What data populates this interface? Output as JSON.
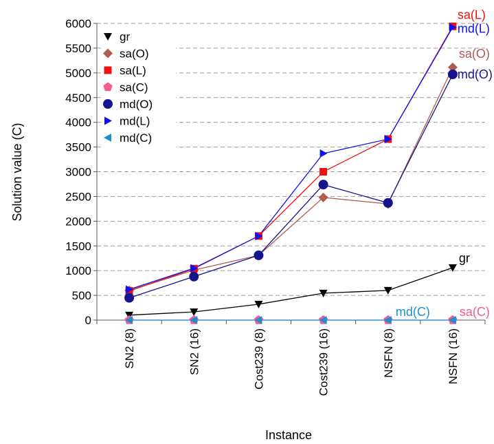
{
  "chart_data": {
    "type": "line",
    "title": "",
    "xlabel": "Instance",
    "ylabel": "Solution value (C)",
    "categories": [
      "SN2 (8)",
      "SN2 (16)",
      "Cost239 (8)",
      "Cost239 (16)",
      "NSFN (8)",
      "NSFN (16)"
    ],
    "ylim": [
      0,
      6000
    ],
    "yticks": [
      0,
      500,
      1000,
      1500,
      2000,
      2500,
      3000,
      3500,
      4000,
      4500,
      5000,
      5500,
      6000
    ],
    "grid": "horizontal dashed",
    "legend_position": "top-left",
    "series": [
      {
        "name": "gr",
        "marker": "triangle-down",
        "color": "#000000",
        "line_color": "#000000",
        "values": [
          100,
          165,
          320,
          545,
          600,
          1060
        ],
        "end_label": "gr",
        "end_label_color": "#000000"
      },
      {
        "name": "sa(O)",
        "marker": "diamond",
        "color": "#b05a50",
        "line_color": "#b05a50",
        "values": [
          600,
          1010,
          1310,
          2480,
          2350,
          5110
        ],
        "end_label": "sa(O)",
        "end_label_color": "#b05a50"
      },
      {
        "name": "sa(L)",
        "marker": "square",
        "color": "#ee1111",
        "line_color": "#ee1111",
        "values": [
          590,
          1040,
          1700,
          3000,
          3660,
          5940
        ],
        "end_label": "sa(L)",
        "end_label_color": "#ee1111"
      },
      {
        "name": "sa(C)",
        "marker": "pentagon",
        "color": "#f45b8e",
        "line_color": "#f45b8e",
        "values": [
          0,
          0,
          0,
          0,
          0,
          0
        ],
        "end_label": "sa(C)",
        "end_label_color": "#f45b8e"
      },
      {
        "name": "md(O)",
        "marker": "circle",
        "color": "#14148c",
        "line_color": "#14148c",
        "values": [
          450,
          880,
          1310,
          2740,
          2370,
          4970
        ],
        "end_label": "md(O)",
        "end_label_color": "#14148c"
      },
      {
        "name": "md(L)",
        "marker": "triangle-right",
        "color": "#1010ee",
        "line_color": "#1010ee",
        "values": [
          620,
          1050,
          1700,
          3370,
          3660,
          5920
        ],
        "end_label": "md(L)",
        "end_label_color": "#1010ee"
      },
      {
        "name": "md(C)",
        "marker": "triangle-left",
        "color": "#1b8fcf",
        "line_color": "#1b8fcf",
        "values": [
          0,
          0,
          0,
          0,
          0,
          0
        ],
        "end_label": "md(C)",
        "end_label_color": "#1b8fcf"
      }
    ]
  }
}
